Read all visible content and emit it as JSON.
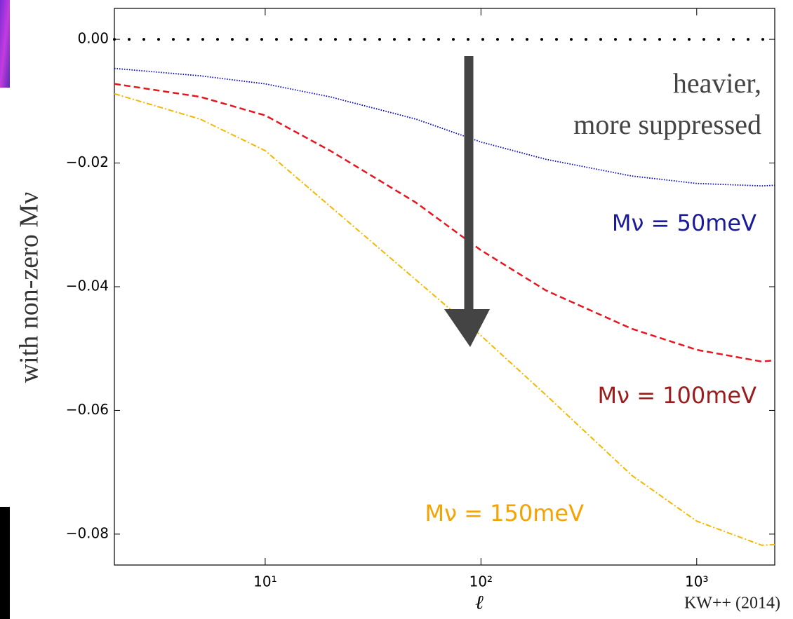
{
  "chart_data": {
    "type": "line",
    "y_label": "with non-zero Mν",
    "x_label": "ℓ",
    "log_x": true,
    "x": [
      2,
      5,
      10,
      20,
      50,
      100,
      200,
      500,
      1000,
      2000,
      2300
    ],
    "series": [
      {
        "color": "#000000",
        "linestyle": "dots",
        "values": [
          0,
          0,
          0,
          0,
          0,
          0,
          0,
          0,
          0,
          0,
          0
        ]
      },
      {
        "color": "#0000dd",
        "linestyle": "dotted",
        "values": [
          -0.0047,
          -0.0059,
          -0.0072,
          -0.0093,
          -0.0129,
          -0.0166,
          -0.0194,
          -0.0221,
          -0.0233,
          -0.0237,
          -0.0236
        ]
      },
      {
        "color": "#e8141e",
        "linestyle": "dashed",
        "values": [
          -0.0072,
          -0.0093,
          -0.0123,
          -0.018,
          -0.0264,
          -0.0341,
          -0.0406,
          -0.0468,
          -0.0502,
          -0.0521,
          -0.0519
        ]
      },
      {
        "color": "#f5b800",
        "linestyle": "dashdot",
        "values": [
          -0.0088,
          -0.0129,
          -0.018,
          -0.027,
          -0.0389,
          -0.0479,
          -0.0575,
          -0.0705,
          -0.0779,
          -0.0818,
          -0.0817
        ]
      }
    ],
    "xlim": [
      2,
      2300
    ],
    "ylim": [
      -0.085,
      0.005
    ],
    "xticks": [
      {
        "value": 10,
        "label": "10¹"
      },
      {
        "value": 100,
        "label": "10²"
      },
      {
        "value": 1000,
        "label": "10³"
      }
    ],
    "yticks": [
      {
        "value": 0,
        "label": "0.00"
      },
      {
        "value": -0.02,
        "label": "−0.02"
      },
      {
        "value": -0.04,
        "label": "−0.04"
      },
      {
        "value": -0.06,
        "label": "−0.06"
      },
      {
        "value": -0.08,
        "label": "−0.08"
      }
    ],
    "annotations": [
      {
        "text": "heavier,",
        "color": "#444444"
      },
      {
        "text": "more suppressed",
        "color": "#444444"
      },
      {
        "text": "Mν = 50meV",
        "color": "#1a1a9a"
      },
      {
        "text": "Mν = 100meV",
        "color": "#9b1c1c"
      },
      {
        "text": "Mν = 150meV",
        "color": "#f5a300"
      }
    ],
    "credit": "KW++ (2014)"
  }
}
